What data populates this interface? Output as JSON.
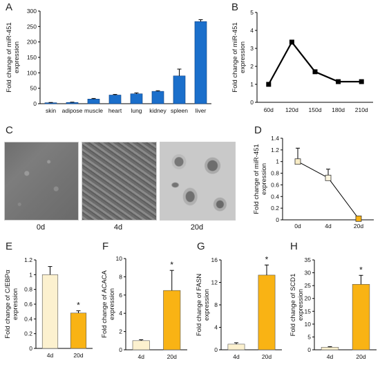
{
  "panels": {
    "A": {
      "letter": "A",
      "chart_data": {
        "type": "bar",
        "categories": [
          "skin",
          "adipose",
          "muscle",
          "heart",
          "lung",
          "kidney",
          "spleen",
          "liver"
        ],
        "values": [
          3,
          4,
          15,
          28,
          32,
          40,
          90,
          266
        ],
        "errors": [
          1,
          1,
          2,
          2,
          3,
          2,
          22,
          6
        ],
        "ylabel": "Fold change of miR-451 expression",
        "ylim": [
          0,
          300
        ],
        "yticks": [
          0,
          50,
          100,
          150,
          200,
          250,
          300
        ],
        "color": "#1b6fcb"
      }
    },
    "B": {
      "letter": "B",
      "chart_data": {
        "type": "line",
        "categories": [
          "60d",
          "120d",
          "150d",
          "180d",
          "210d"
        ],
        "values": [
          1.0,
          3.35,
          1.7,
          1.15,
          1.15
        ],
        "ylabel": "Fold change of miR-451 expression",
        "ylim": [
          0,
          5
        ],
        "yticks": [
          0,
          1,
          2,
          3,
          4,
          5
        ],
        "color": "#000000"
      }
    },
    "C": {
      "letter": "C",
      "labels": [
        "0d",
        "4d",
        "20d"
      ]
    },
    "D": {
      "letter": "D",
      "chart_data": {
        "type": "line",
        "categories": [
          "0d",
          "4d",
          "20d"
        ],
        "values": [
          1.0,
          0.72,
          0.02
        ],
        "errors": [
          0.23,
          0.15,
          0.01
        ],
        "marker_colors": [
          "#f8ecc6",
          "#fcf6e0",
          "#f9b314"
        ],
        "ylabel": "Fold change of miR-451 expression",
        "ylim": [
          0,
          1.4
        ],
        "yticks": [
          "0",
          "0.2",
          "0.4",
          "0.6",
          "0.8",
          "1",
          "1.2",
          "1.4"
        ]
      }
    },
    "E": {
      "letter": "E",
      "chart_data": {
        "type": "bar",
        "categories": [
          "4d",
          "20d"
        ],
        "values": [
          1.0,
          0.48
        ],
        "errors": [
          0.11,
          0.03
        ],
        "ylabel": "Fold change of C/EBPα expression",
        "ylim": [
          0,
          1.2
        ],
        "yticks": [
          "0",
          "0.2",
          "0.4",
          "0.6",
          "0.8",
          "1",
          "1.2"
        ],
        "significance": [
          "",
          "*"
        ]
      }
    },
    "F": {
      "letter": "F",
      "chart_data": {
        "type": "bar",
        "categories": [
          "4d",
          "20d"
        ],
        "values": [
          1.0,
          6.5
        ],
        "errors": [
          0.1,
          2.2
        ],
        "ylabel": "Fold change of ACACA expression",
        "ylim": [
          0,
          10
        ],
        "yticks": [
          "0",
          "2",
          "4",
          "6",
          "8",
          "10"
        ],
        "significance": [
          "",
          "*"
        ]
      }
    },
    "G": {
      "letter": "G",
      "chart_data": {
        "type": "bar",
        "categories": [
          "4d",
          "20d"
        ],
        "values": [
          1.0,
          13.3
        ],
        "errors": [
          0.25,
          1.8
        ],
        "ylabel": "Fold change of FASN expression",
        "ylim": [
          0,
          16
        ],
        "yticks": [
          "0",
          "4",
          "8",
          "12",
          "16"
        ],
        "significance": [
          "",
          "*"
        ]
      }
    },
    "H": {
      "letter": "H",
      "chart_data": {
        "type": "bar",
        "categories": [
          "4d",
          "20d"
        ],
        "values": [
          1.0,
          25.5
        ],
        "errors": [
          0.2,
          3.5
        ],
        "ylabel": "Fold change of SCD1 expression",
        "ylim": [
          0,
          35
        ],
        "yticks": [
          "0",
          "5",
          "10",
          "15",
          "20",
          "25",
          "30",
          "35"
        ],
        "significance": [
          "",
          "*"
        ]
      }
    }
  },
  "bar_colors": {
    "light": "#fcf1cf",
    "dark": "#f9b314"
  }
}
